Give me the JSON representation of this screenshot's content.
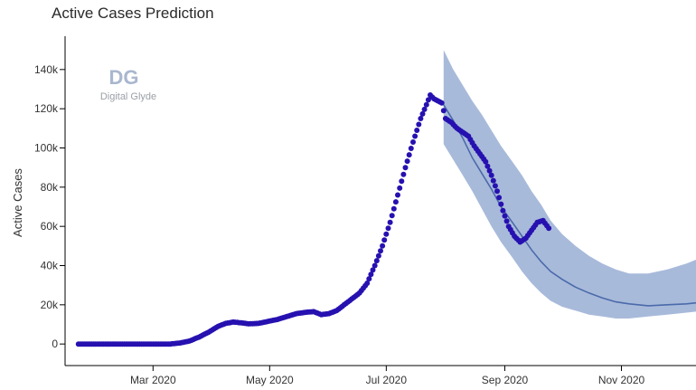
{
  "title": "Active Cases Prediction",
  "logo": {
    "mark": "DG",
    "text": "Digital Glyde"
  },
  "colors": {
    "actual": "#2611b0",
    "prediction_line": "#4a6aaa",
    "band": "#a3b6d8",
    "axis": "#000000",
    "watermark": "#a9b7cf"
  },
  "chart_data": {
    "type": "scatter",
    "title": "Active Cases Prediction",
    "xlabel": "",
    "ylabel": "Active Cases",
    "xlim": [
      "2020-01-15",
      "2020-12-10"
    ],
    "ylim": [
      -11000,
      157000
    ],
    "y_ticks": [
      0,
      20000,
      40000,
      60000,
      80000,
      100000,
      120000,
      140000
    ],
    "y_tick_labels": [
      "0",
      "20k",
      "40k",
      "60k",
      "80k",
      "100k",
      "120k",
      "140k"
    ],
    "x_ticks": [
      "2020-03-01",
      "2020-05-01",
      "2020-07-01",
      "2020-09-01",
      "2020-11-01"
    ],
    "x_tick_labels": [
      "Mar 2020",
      "May 2020",
      "Jul 2020",
      "Sep 2020",
      "Nov 2020"
    ],
    "grid": false,
    "legend": "none",
    "series": [
      {
        "type": "scatter",
        "points": [
          [
            "2020-01-22",
            0
          ],
          [
            "2020-02-01",
            0
          ],
          [
            "2020-02-10",
            0
          ],
          [
            "2020-02-20",
            0
          ],
          [
            "2020-03-01",
            0
          ],
          [
            "2020-03-10",
            0
          ],
          [
            "2020-03-15",
            500
          ],
          [
            "2020-03-20",
            1500
          ],
          [
            "2020-03-25",
            3500
          ],
          [
            "2020-03-30",
            6000
          ],
          [
            "2020-04-04",
            9000
          ],
          [
            "2020-04-08",
            10500
          ],
          [
            "2020-04-12",
            11200
          ],
          [
            "2020-04-16",
            10800
          ],
          [
            "2020-04-20",
            10300
          ],
          [
            "2020-04-25",
            10500
          ],
          [
            "2020-04-30",
            11500
          ],
          [
            "2020-05-05",
            12500
          ],
          [
            "2020-05-10",
            14000
          ],
          [
            "2020-05-15",
            15500
          ],
          [
            "2020-05-20",
            16200
          ],
          [
            "2020-05-24",
            16500
          ],
          [
            "2020-05-28",
            15000
          ],
          [
            "2020-06-01",
            15500
          ],
          [
            "2020-06-05",
            17000
          ],
          [
            "2020-06-09",
            20000
          ],
          [
            "2020-06-13",
            23000
          ],
          [
            "2020-06-17",
            26000
          ],
          [
            "2020-06-21",
            31000
          ],
          [
            "2020-06-25",
            40000
          ],
          [
            "2020-06-29",
            50000
          ],
          [
            "2020-07-03",
            62000
          ],
          [
            "2020-07-07",
            76000
          ],
          [
            "2020-07-11",
            90000
          ],
          [
            "2020-07-15",
            103000
          ],
          [
            "2020-07-19",
            115000
          ],
          [
            "2020-07-22",
            122000
          ],
          [
            "2020-07-24",
            127000
          ],
          [
            "2020-07-26",
            125000
          ],
          [
            "2020-07-28",
            124000
          ],
          [
            "2020-07-30",
            123000
          ],
          [
            "2020-08-01",
            115000
          ],
          [
            "2020-08-04",
            113000
          ],
          [
            "2020-08-07",
            110000
          ],
          [
            "2020-08-10",
            108000
          ],
          [
            "2020-08-13",
            106000
          ],
          [
            "2020-08-16",
            101000
          ],
          [
            "2020-08-19",
            97000
          ],
          [
            "2020-08-22",
            93000
          ],
          [
            "2020-08-25",
            86000
          ],
          [
            "2020-08-28",
            78000
          ],
          [
            "2020-08-31",
            68000
          ],
          [
            "2020-09-03",
            60000
          ],
          [
            "2020-09-06",
            55000
          ],
          [
            "2020-09-09",
            52000
          ],
          [
            "2020-09-12",
            54000
          ],
          [
            "2020-09-15",
            58000
          ],
          [
            "2020-09-18",
            62000
          ],
          [
            "2020-09-21",
            63000
          ],
          [
            "2020-09-24",
            59000
          ]
        ]
      },
      {
        "type": "line",
        "points": [
          [
            "2020-07-31",
            122000
          ],
          [
            "2020-08-05",
            114000
          ],
          [
            "2020-08-10",
            105000
          ],
          [
            "2020-08-15",
            95000
          ],
          [
            "2020-08-20",
            87000
          ],
          [
            "2020-08-25",
            79000
          ],
          [
            "2020-08-30",
            70000
          ],
          [
            "2020-09-05",
            62000
          ],
          [
            "2020-09-10",
            55000
          ],
          [
            "2020-09-15",
            48000
          ],
          [
            "2020-09-20",
            42000
          ],
          [
            "2020-09-25",
            37000
          ],
          [
            "2020-10-01",
            33000
          ],
          [
            "2020-10-08",
            29000
          ],
          [
            "2020-10-15",
            26000
          ],
          [
            "2020-10-22",
            23500
          ],
          [
            "2020-10-29",
            21500
          ],
          [
            "2020-11-05",
            20500
          ],
          [
            "2020-11-15",
            19500
          ],
          [
            "2020-11-25",
            20000
          ],
          [
            "2020-12-05",
            20500
          ],
          [
            "2020-12-10",
            21000
          ]
        ]
      },
      {
        "type": "area",
        "upper": [
          [
            "2020-07-31",
            150000
          ],
          [
            "2020-08-05",
            140000
          ],
          [
            "2020-08-10",
            132000
          ],
          [
            "2020-08-15",
            124000
          ],
          [
            "2020-08-20",
            117000
          ],
          [
            "2020-08-25",
            109000
          ],
          [
            "2020-08-30",
            101000
          ],
          [
            "2020-09-05",
            93000
          ],
          [
            "2020-09-10",
            86000
          ],
          [
            "2020-09-15",
            78000
          ],
          [
            "2020-09-20",
            71000
          ],
          [
            "2020-09-25",
            63000
          ],
          [
            "2020-10-01",
            56000
          ],
          [
            "2020-10-08",
            50000
          ],
          [
            "2020-10-15",
            45000
          ],
          [
            "2020-10-22",
            41000
          ],
          [
            "2020-10-29",
            38000
          ],
          [
            "2020-11-05",
            36000
          ],
          [
            "2020-11-15",
            36000
          ],
          [
            "2020-11-25",
            38000
          ],
          [
            "2020-12-05",
            41000
          ],
          [
            "2020-12-10",
            43000
          ]
        ],
        "lower": [
          [
            "2020-07-31",
            102000
          ],
          [
            "2020-08-05",
            94000
          ],
          [
            "2020-08-10",
            86000
          ],
          [
            "2020-08-15",
            78000
          ],
          [
            "2020-08-20",
            69000
          ],
          [
            "2020-08-25",
            60000
          ],
          [
            "2020-08-30",
            52000
          ],
          [
            "2020-09-05",
            44000
          ],
          [
            "2020-09-10",
            37000
          ],
          [
            "2020-09-15",
            31000
          ],
          [
            "2020-09-20",
            26000
          ],
          [
            "2020-09-25",
            22000
          ],
          [
            "2020-10-01",
            19000
          ],
          [
            "2020-10-08",
            17000
          ],
          [
            "2020-10-15",
            15000
          ],
          [
            "2020-10-22",
            14000
          ],
          [
            "2020-10-29",
            13000
          ],
          [
            "2020-11-05",
            13000
          ],
          [
            "2020-11-15",
            14000
          ],
          [
            "2020-11-25",
            15000
          ],
          [
            "2020-12-05",
            16000
          ],
          [
            "2020-12-10",
            16500
          ]
        ]
      }
    ]
  }
}
